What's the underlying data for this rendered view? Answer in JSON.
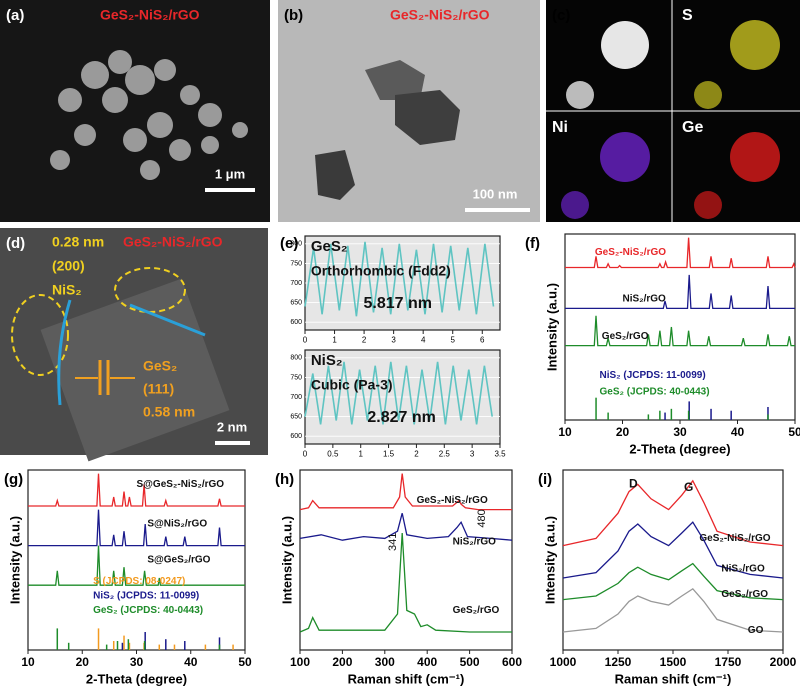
{
  "panels": {
    "a": {
      "label": "(a)",
      "title": "GeS₂-NiS₂/rGO",
      "scale": "1 μm"
    },
    "b": {
      "label": "(b)",
      "title": "GeS₂-NiS₂/rGO",
      "scale": "100 nm"
    },
    "c": {
      "label": "(c)",
      "maps": [
        "S",
        "Ni",
        "Ge"
      ]
    },
    "d": {
      "label": "(d)",
      "title": "GeS₂-NiS₂/rGO",
      "spacing1": "0.28 nm",
      "plane1": "(200)",
      "phase1": "NiS₂",
      "phase2": "GeS₂",
      "plane2": "(111)",
      "spacing2": "0.58 nm",
      "scale": "2 nm"
    }
  },
  "chart_data": [
    {
      "type": "line",
      "panel_label": "(e)",
      "labels": [
        "GeS₂",
        "Orthorhombic (Fdd2)",
        "5.817 nm"
      ],
      "xlim": [
        0,
        6.6
      ],
      "ylim": [
        580,
        820
      ],
      "xticks": [
        0,
        1,
        2,
        3,
        4,
        5,
        6
      ],
      "yticks": [
        600,
        650,
        700,
        750,
        800
      ],
      "series": [
        {
          "color": "#5fc4c2",
          "x": [
            0,
            0.29,
            0.58,
            0.87,
            1.16,
            1.45,
            1.74,
            2.03,
            2.32,
            2.61,
            2.9,
            3.19,
            3.48,
            3.77,
            4.06,
            4.35,
            4.64,
            4.93,
            5.22,
            5.51,
            5.8,
            6.09,
            6.38
          ],
          "values": [
            640,
            790,
            620,
            800,
            630,
            795,
            615,
            805,
            625,
            790,
            620,
            800,
            630,
            785,
            620,
            800,
            625,
            795,
            630,
            790,
            620,
            800,
            640
          ]
        }
      ]
    },
    {
      "type": "line",
      "labels": [
        "NiS₂",
        "Cubic (Pa-3)",
        "2.827 nm"
      ],
      "xlim": [
        0,
        3.5
      ],
      "ylim": [
        580,
        820
      ],
      "xticks": [
        0,
        0.5,
        1,
        1.5,
        2,
        2.5,
        3,
        3.5
      ],
      "yticks": [
        600,
        650,
        700,
        750,
        800
      ],
      "series": [
        {
          "color": "#5fc4c2",
          "x": [
            0,
            0.14,
            0.28,
            0.42,
            0.56,
            0.7,
            0.84,
            0.98,
            1.12,
            1.26,
            1.4,
            1.54,
            1.68,
            1.82,
            1.96,
            2.1,
            2.24,
            2.38,
            2.52,
            2.66,
            2.8,
            2.94,
            3.08,
            3.22,
            3.36
          ],
          "values": [
            650,
            760,
            630,
            780,
            640,
            790,
            630,
            770,
            640,
            780,
            630,
            790,
            640,
            780,
            630,
            770,
            640,
            790,
            630,
            780,
            640,
            770,
            630,
            780,
            650
          ]
        }
      ]
    },
    {
      "type": "line",
      "panel_label": "(f)",
      "x_label": "2-Theta (degree)",
      "y_label": "Intensity (a.u.)",
      "labels": [],
      "xlim": [
        10,
        50
      ],
      "ylim": [
        0,
        100
      ],
      "xticks": [
        10,
        20,
        30,
        40,
        50
      ],
      "series": [
        {
          "name": "GeS₂-NiS₂/rGO",
          "color": "#e8272a",
          "type": "line",
          "x": [
            10,
            15.1,
            15.4,
            15.7,
            17.2,
            17.5,
            17.8,
            19.2,
            19.5,
            19.8,
            26.2,
            26.5,
            26.8,
            27.2,
            27.5,
            27.8,
            31.2,
            31.5,
            31.8,
            35.1,
            35.4,
            35.7,
            38.6,
            38.9,
            39.2,
            45,
            45.3,
            45.6,
            49.5,
            49.8,
            50
          ],
          "values": [
            82,
            82,
            88,
            82,
            82,
            84,
            82,
            82,
            83,
            82,
            82,
            84,
            82,
            82,
            85,
            82,
            82,
            98,
            82,
            82,
            88,
            82,
            82,
            87,
            82,
            82,
            88,
            82,
            82,
            84,
            82
          ]
        },
        {
          "name": "NiS₂/rGO",
          "color": "#1a1a8c",
          "type": "line",
          "x": [
            10,
            27.1,
            27.4,
            27.7,
            31.3,
            31.6,
            31.9,
            35.1,
            35.4,
            35.7,
            38.6,
            38.9,
            39.2,
            45,
            45.3,
            45.6,
            50
          ],
          "values": [
            60,
            60,
            64,
            60,
            60,
            78,
            60,
            60,
            68,
            60,
            60,
            67,
            60,
            60,
            72,
            60,
            60
          ]
        },
        {
          "name": "GeS₂/rGO",
          "color": "#1e8c2a",
          "type": "line",
          "x": [
            10,
            15.1,
            15.4,
            15.7,
            17.2,
            17.5,
            17.8,
            24.2,
            24.5,
            24.8,
            26.2,
            26.5,
            26.8,
            28.2,
            28.5,
            28.8,
            31.2,
            31.5,
            31.8,
            34.7,
            35,
            35.3,
            40.7,
            41,
            41.3,
            45,
            45.3,
            45.6,
            48.7,
            49,
            49.3,
            50
          ],
          "values": [
            40,
            40,
            56,
            40,
            40,
            44,
            40,
            40,
            46,
            40,
            40,
            48,
            40,
            40,
            50,
            40,
            40,
            48,
            40,
            40,
            45,
            40,
            40,
            44,
            40,
            40,
            46,
            40,
            40,
            45,
            40,
            40
          ]
        },
        {
          "name": "NiS₂ (JCPDS: 11-0099)",
          "color": "#1a1a8c",
          "type": "bar",
          "x": [
            27.4,
            31.6,
            35.4,
            38.9,
            45.3
          ],
          "values": [
            4,
            10,
            6,
            5,
            7
          ]
        },
        {
          "name": "GeS₂ (JCPDS: 40-0443)",
          "color": "#1e8c2a",
          "type": "bar",
          "x": [
            15.4,
            17.5,
            24.5,
            26.5,
            28.5,
            31.5,
            45.3
          ],
          "values": [
            12,
            4,
            3,
            5,
            6,
            5,
            3
          ]
        }
      ]
    },
    {
      "type": "line",
      "panel_label": "(g)",
      "x_label": "2-Theta (degree)",
      "y_label": "Intensity (a.u.)",
      "labels": [],
      "xlim": [
        10,
        50
      ],
      "ylim": [
        0,
        100
      ],
      "xticks": [
        10,
        20,
        30,
        40,
        50
      ],
      "series": [
        {
          "name": "S@GeS₂-NiS₂/rGO",
          "color": "#e8272a",
          "type": "line",
          "x": [
            10,
            15.1,
            15.4,
            15.7,
            22.7,
            23,
            23.3,
            25.5,
            25.8,
            26.1,
            27.4,
            27.7,
            28,
            28.4,
            28.7,
            29,
            31.1,
            31.4,
            31.7,
            35.1,
            35.4,
            35.7,
            45,
            45.3,
            45.6,
            50
          ],
          "values": [
            80,
            80,
            83,
            80,
            80,
            98,
            80,
            80,
            85,
            80,
            80,
            88,
            80,
            80,
            85,
            80,
            80,
            92,
            80,
            80,
            83,
            80,
            80,
            84,
            80,
            80
          ]
        },
        {
          "name": "S@NiS₂/rGO",
          "color": "#1a1a8c",
          "type": "line",
          "x": [
            10,
            22.7,
            23,
            23.3,
            25.5,
            25.8,
            26.1,
            27.4,
            27.7,
            28,
            31.3,
            31.6,
            31.9,
            35.1,
            35.4,
            35.7,
            38.6,
            38.9,
            39.2,
            45,
            45.3,
            45.6,
            50
          ],
          "values": [
            58,
            58,
            78,
            58,
            58,
            64,
            58,
            58,
            66,
            58,
            58,
            70,
            58,
            58,
            63,
            58,
            58,
            63,
            58,
            58,
            68,
            58,
            58
          ]
        },
        {
          "name": "S@GeS₂/rGO",
          "color": "#1e8c2a",
          "type": "line",
          "x": [
            10,
            15.1,
            15.4,
            15.7,
            22.7,
            23,
            23.3,
            25.5,
            25.8,
            26.1,
            27.4,
            27.7,
            28,
            31.2,
            31.5,
            31.8,
            34,
            34.2,
            34.4,
            50
          ],
          "values": [
            36,
            36,
            44,
            36,
            36,
            58,
            36,
            36,
            44,
            36,
            36,
            46,
            36,
            36,
            44,
            36,
            36,
            40,
            36,
            36
          ]
        },
        {
          "name": "S (JCPDS: 08-0247)",
          "color": "#f29a1f",
          "type": "bar",
          "x": [
            23,
            25.8,
            27.7,
            28.7,
            31.4,
            34.2,
            37,
            42.7,
            47.8
          ],
          "values": [
            12,
            5,
            8,
            4,
            4,
            3,
            3,
            3,
            3
          ]
        },
        {
          "name": "NiS₂ (JCPDS: 11-0099)",
          "color": "#1a1a8c",
          "type": "bar",
          "x": [
            27.4,
            31.6,
            35.4,
            38.9,
            45.3
          ],
          "values": [
            4,
            10,
            6,
            5,
            7
          ]
        },
        {
          "name": "GeS₂ (JCPDS: 40-0443)",
          "color": "#1e8c2a",
          "type": "bar",
          "x": [
            15.4,
            17.5,
            24.5,
            26.5,
            28.5,
            31.5,
            45.3
          ],
          "values": [
            12,
            4,
            3,
            5,
            6,
            5,
            3
          ]
        }
      ]
    },
    {
      "type": "line",
      "panel_label": "(h)",
      "x_label": "Raman shift (cm⁻¹)",
      "y_label": "Intensity (a.u.)",
      "labels": [
        "341",
        "480"
      ],
      "xlim": [
        100,
        600
      ],
      "ylim": [
        0,
        100
      ],
      "xticks": [
        100,
        200,
        300,
        400,
        500,
        600
      ],
      "series": [
        {
          "name": "GeS₂-NiS₂/rGO",
          "color": "#e8272a",
          "type": "line",
          "x": [
            100,
            120,
            130,
            145,
            320,
            335,
            341,
            348,
            365,
            460,
            475,
            480,
            490,
            520,
            600
          ],
          "values": [
            78,
            79,
            83,
            79,
            79,
            85,
            98,
            85,
            80,
            80,
            83,
            81,
            79,
            78,
            78
          ]
        },
        {
          "name": "NiS₂/rGO",
          "color": "#1a1a8c",
          "type": "line",
          "x": [
            100,
            150,
            200,
            250,
            300,
            330,
            341,
            352,
            400,
            450,
            470,
            480,
            495,
            550,
            600
          ],
          "values": [
            62,
            64,
            61,
            63,
            62,
            66,
            76,
            64,
            62,
            63,
            68,
            71,
            63,
            62,
            61
          ]
        },
        {
          "name": "GeS₂/rGO",
          "color": "#1e8c2a",
          "type": "line",
          "x": [
            100,
            120,
            130,
            145,
            300,
            330,
            341,
            352,
            370,
            385,
            400,
            420,
            500,
            600
          ],
          "values": [
            10,
            12,
            18,
            11,
            11,
            20,
            65,
            22,
            20,
            13,
            14,
            11,
            10,
            10
          ]
        }
      ]
    },
    {
      "type": "line",
      "panel_label": "(i)",
      "x_label": "Raman shift (cm⁻¹)",
      "y_label": "Intensity (a.u.)",
      "labels": [
        "D",
        "G"
      ],
      "xlim": [
        1000,
        2000
      ],
      "ylim": [
        0,
        100
      ],
      "xticks": [
        1000,
        1250,
        1500,
        1750,
        2000
      ],
      "series": [
        {
          "name": "GeS₂-NiS₂/rGO",
          "color": "#e8272a",
          "type": "line",
          "x": [
            1000,
            1150,
            1250,
            1300,
            1340,
            1400,
            1480,
            1540,
            1590,
            1640,
            1700,
            1850,
            2000
          ],
          "values": [
            58,
            62,
            76,
            88,
            92,
            84,
            78,
            86,
            94,
            82,
            66,
            60,
            58
          ]
        },
        {
          "name": "NiS₂/rGO",
          "color": "#1a1a8c",
          "type": "line",
          "x": [
            1000,
            1150,
            1250,
            1300,
            1340,
            1400,
            1480,
            1540,
            1590,
            1640,
            1700,
            1850,
            2000
          ],
          "values": [
            40,
            43,
            55,
            66,
            70,
            63,
            58,
            65,
            71,
            61,
            47,
            42,
            40
          ]
        },
        {
          "name": "GeS₂/rGO",
          "color": "#1e8c2a",
          "type": "line",
          "x": [
            1000,
            1150,
            1250,
            1300,
            1340,
            1400,
            1480,
            1540,
            1590,
            1640,
            1700,
            1850,
            2000
          ],
          "values": [
            28,
            30,
            37,
            43,
            46,
            42,
            39,
            44,
            48,
            41,
            33,
            29,
            28
          ]
        },
        {
          "name": "GO",
          "color": "#999999",
          "type": "line",
          "x": [
            1000,
            1150,
            1250,
            1300,
            1340,
            1400,
            1480,
            1540,
            1590,
            1640,
            1700,
            1850,
            2000
          ],
          "values": [
            10,
            12,
            20,
            27,
            30,
            27,
            25,
            30,
            34,
            27,
            17,
            11,
            10
          ]
        }
      ]
    }
  ]
}
